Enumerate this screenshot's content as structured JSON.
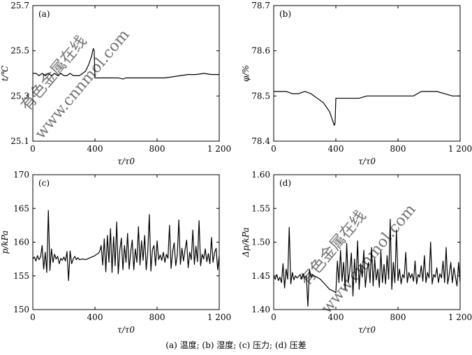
{
  "caption": "(a) 温度; (b) 湿度; (c) 压力; (d) 压差",
  "watermark": [
    "有色金属在线",
    "www.cnnmol.com"
  ],
  "colors": {
    "line": "#000000",
    "watermark": "#c8c8c8"
  },
  "chart_data": [
    {
      "id": "a",
      "type": "line",
      "panel_label": "(a)",
      "ylabel": "t/℃",
      "xlabel": "τ/τ0",
      "xlim": [
        0,
        1200
      ],
      "ylim": [
        25.1,
        25.7
      ],
      "xticks": [
        0,
        400,
        800,
        1200
      ],
      "xtick_labels": [
        "0",
        "400",
        "800",
        "1 200"
      ],
      "yticks": [
        25.1,
        25.3,
        25.5,
        25.7
      ],
      "ytick_labels": [
        "25.1",
        "25.3",
        "25.5",
        "25.7"
      ],
      "series": [
        {
          "x": [
            0,
            20,
            40,
            60,
            80,
            100,
            120,
            140,
            160,
            180,
            200,
            220,
            240,
            260,
            280,
            300,
            320,
            340,
            360,
            370,
            380,
            385,
            390,
            395,
            400,
            450,
            500,
            550,
            580,
            600,
            650,
            700,
            750,
            800,
            850,
            900,
            950,
            1000,
            1050,
            1100,
            1150,
            1200
          ],
          "y": [
            25.4,
            25.4,
            25.39,
            25.4,
            25.39,
            25.4,
            25.39,
            25.4,
            25.39,
            25.4,
            25.39,
            25.39,
            25.4,
            25.39,
            25.39,
            25.39,
            25.4,
            25.41,
            25.44,
            25.46,
            25.48,
            25.5,
            25.51,
            25.5,
            25.38,
            25.38,
            25.38,
            25.38,
            25.375,
            25.38,
            25.38,
            25.38,
            25.38,
            25.38,
            25.38,
            25.385,
            25.39,
            25.395,
            25.395,
            25.4,
            25.395,
            25.395
          ]
        }
      ]
    },
    {
      "id": "b",
      "type": "line",
      "panel_label": "(b)",
      "ylabel": "φ/%",
      "xlabel": "τ/τ0",
      "xlim": [
        0,
        1200
      ],
      "ylim": [
        78.4,
        78.7
      ],
      "xticks": [
        0,
        400,
        800,
        1200
      ],
      "xtick_labels": [
        "0",
        "400",
        "800",
        "1 200"
      ],
      "yticks": [
        78.4,
        78.5,
        78.6,
        78.7
      ],
      "ytick_labels": [
        "78.4",
        "78.5",
        "78.6",
        "78.7"
      ],
      "series": [
        {
          "x": [
            0,
            20,
            40,
            80,
            120,
            160,
            200,
            240,
            260,
            280,
            300,
            320,
            340,
            360,
            370,
            380,
            385,
            390,
            395,
            400,
            405,
            450,
            500,
            550,
            600,
            650,
            700,
            750,
            800,
            850,
            900,
            950,
            980,
            1000,
            1050,
            1100,
            1150,
            1170,
            1200
          ],
          "y": [
            78.51,
            78.51,
            78.51,
            78.51,
            78.505,
            78.505,
            78.51,
            78.505,
            78.5,
            78.495,
            78.49,
            78.485,
            78.475,
            78.465,
            78.455,
            78.445,
            78.44,
            78.435,
            78.44,
            78.495,
            78.495,
            78.495,
            78.495,
            78.495,
            78.5,
            78.5,
            78.5,
            78.5,
            78.5,
            78.5,
            78.5,
            78.51,
            78.51,
            78.51,
            78.51,
            78.505,
            78.5,
            78.5,
            78.5
          ]
        }
      ]
    },
    {
      "id": "c",
      "type": "line",
      "panel_label": "(c)",
      "ylabel": "p/kPa",
      "xlabel": "τ/τ0",
      "xlim": [
        0,
        1200
      ],
      "ylim": [
        150,
        170
      ],
      "xticks": [
        0,
        400,
        800,
        1200
      ],
      "xtick_labels": [
        "0",
        "400",
        "800",
        "1 200"
      ],
      "yticks": [
        150,
        155,
        160,
        165,
        170
      ],
      "ytick_labels": [
        "150",
        "155",
        "160",
        "165",
        "170"
      ],
      "series": [
        {
          "x": [
            0,
            10,
            20,
            30,
            40,
            50,
            60,
            70,
            80,
            90,
            100,
            110,
            120,
            130,
            140,
            150,
            160,
            170,
            180,
            190,
            200,
            210,
            220,
            230,
            240,
            250,
            260,
            270,
            280,
            290,
            300,
            320,
            340,
            360,
            380,
            400,
            410,
            420,
            430,
            440,
            450,
            460,
            470,
            480,
            490,
            500,
            510,
            520,
            530,
            540,
            550,
            560,
            570,
            580,
            590,
            600,
            610,
            620,
            630,
            640,
            650,
            660,
            670,
            680,
            690,
            700,
            710,
            720,
            730,
            740,
            750,
            760,
            770,
            780,
            790,
            800,
            810,
            820,
            830,
            840,
            850,
            860,
            870,
            880,
            890,
            900,
            910,
            920,
            930,
            940,
            950,
            960,
            970,
            980,
            990,
            1000,
            1010,
            1020,
            1030,
            1040,
            1050,
            1060,
            1070,
            1080,
            1090,
            1100,
            1110,
            1120,
            1130,
            1140,
            1150,
            1160,
            1170,
            1180,
            1190,
            1200
          ],
          "y": [
            157.5,
            157.8,
            157.2,
            158.0,
            157.4,
            157.8,
            159.5,
            156.0,
            158.5,
            155.5,
            164.7,
            155.8,
            159.0,
            157.0,
            158.2,
            157.5,
            157.9,
            156.8,
            157.6,
            157.3,
            157.8,
            157.2,
            158.6,
            154.3,
            158.7,
            156.8,
            157.5,
            157.9,
            157.4,
            157.7,
            157.4,
            157.5,
            157.4,
            157.6,
            157.8,
            158.0,
            158.2,
            158.3,
            158.6,
            159.5,
            156.6,
            160.5,
            155.6,
            161.0,
            157.0,
            162.0,
            155.5,
            160.8,
            156.5,
            163.0,
            155.3,
            158.8,
            160.6,
            155.9,
            159.5,
            157.0,
            161.3,
            156.0,
            158.5,
            160.3,
            155.9,
            159.0,
            157.0,
            162.3,
            156.6,
            160.2,
            157.3,
            161.0,
            155.9,
            158.6,
            164.1,
            155.7,
            158.9,
            159.5,
            156.5,
            160.2,
            157.4,
            158.1,
            157.3,
            158.5,
            157.0,
            158.2,
            157.6,
            162.5,
            156.1,
            158.6,
            159.9,
            156.5,
            158.1,
            163.3,
            156.7,
            159.1,
            157.2,
            158.9,
            160.3,
            156.2,
            158.5,
            157.4,
            161.8,
            156.7,
            159.4,
            157.1,
            163.2,
            156.5,
            158.2,
            157.5,
            159.0,
            157.1,
            158.3,
            156.8,
            160.7,
            157.0,
            158.5,
            159.1,
            155.9,
            158.0
          ]
        }
      ]
    },
    {
      "id": "d",
      "type": "line",
      "panel_label": "(d)",
      "ylabel": "Δp/kPa",
      "xlabel": "τ/τ0",
      "xlim": [
        0,
        1200
      ],
      "ylim": [
        1.4,
        1.6
      ],
      "xticks": [
        0,
        400,
        800,
        1200
      ],
      "xtick_labels": [
        "0",
        "400",
        "800",
        "1 200"
      ],
      "yticks": [
        1.4,
        1.45,
        1.5,
        1.55,
        1.6
      ],
      "ytick_labels": [
        "1.40",
        "1.45",
        "1.50",
        "1.55",
        "1.60"
      ],
      "series": [
        {
          "x": [
            0,
            10,
            20,
            30,
            40,
            50,
            60,
            70,
            80,
            90,
            100,
            110,
            120,
            130,
            140,
            150,
            160,
            170,
            180,
            190,
            200,
            210,
            220,
            230,
            240,
            250,
            260,
            280,
            300,
            320,
            340,
            360,
            380,
            400,
            410,
            420,
            430,
            440,
            450,
            460,
            470,
            480,
            490,
            500,
            510,
            520,
            530,
            540,
            550,
            560,
            570,
            580,
            590,
            600,
            610,
            620,
            630,
            640,
            650,
            660,
            670,
            680,
            690,
            700,
            710,
            720,
            730,
            740,
            750,
            760,
            770,
            780,
            790,
            800,
            810,
            820,
            830,
            840,
            850,
            860,
            870,
            880,
            890,
            900,
            910,
            920,
            930,
            940,
            950,
            960,
            970,
            980,
            990,
            1000,
            1010,
            1020,
            1030,
            1040,
            1050,
            1060,
            1070,
            1080,
            1090,
            1100,
            1110,
            1120,
            1130,
            1140,
            1150,
            1160,
            1170,
            1180,
            1190,
            1200
          ],
          "y": [
            1.45,
            1.445,
            1.452,
            1.443,
            1.448,
            1.44,
            1.468,
            1.432,
            1.46,
            1.445,
            1.522,
            1.438,
            1.455,
            1.444,
            1.45,
            1.447,
            1.449,
            1.452,
            1.445,
            1.453,
            1.447,
            1.45,
            1.405,
            1.46,
            1.448,
            1.452,
            1.45,
            1.448,
            1.445,
            1.44,
            1.435,
            1.43,
            1.428,
            1.425,
            1.472,
            1.44,
            1.488,
            1.442,
            1.47,
            1.43,
            1.498,
            1.44,
            1.458,
            1.484,
            1.42,
            1.475,
            1.44,
            1.502,
            1.43,
            1.468,
            1.448,
            1.488,
            1.433,
            1.457,
            1.47,
            1.44,
            1.492,
            1.435,
            1.475,
            1.444,
            1.46,
            1.433,
            1.486,
            1.44,
            1.467,
            1.438,
            1.48,
            1.445,
            1.534,
            1.43,
            1.47,
            1.44,
            1.518,
            1.443,
            1.46,
            1.438,
            1.452,
            1.447,
            1.485,
            1.44,
            1.455,
            1.447,
            1.453,
            1.442,
            1.472,
            1.438,
            1.452,
            1.448,
            1.465,
            1.442,
            1.48,
            1.44,
            1.455,
            1.447,
            1.5,
            1.438,
            1.452,
            1.448,
            1.462,
            1.44,
            1.453,
            1.447,
            1.472,
            1.44,
            1.492,
            1.438,
            1.452,
            1.47,
            1.44,
            1.462,
            1.448,
            1.435,
            1.47,
            1.44
          ]
        }
      ]
    }
  ]
}
